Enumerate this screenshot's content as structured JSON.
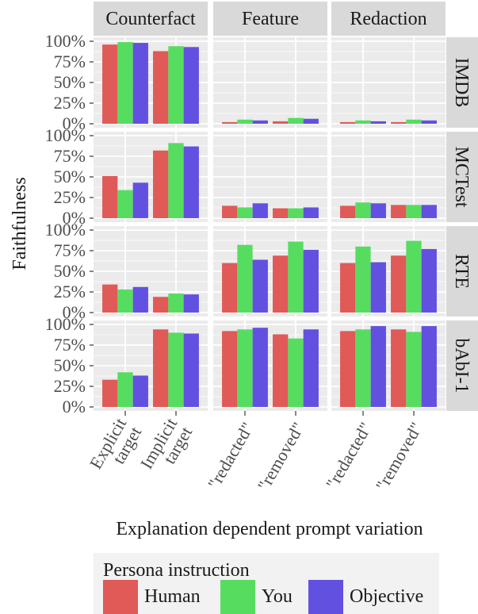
{
  "chart_data": {
    "type": "bar",
    "facet_columns": [
      "Counterfact",
      "Feature",
      "Redaction"
    ],
    "facet_rows": [
      "IMDB",
      "MCTest",
      "RTE",
      "bAbI-1"
    ],
    "xlabel": "Explanation dependent prompt variation",
    "ylabel": "Faithfulness",
    "ylim": [
      0,
      1
    ],
    "y_ticks": [
      "0%",
      "25%",
      "50%",
      "75%",
      "100%"
    ],
    "grid": true,
    "legend": {
      "title": "Persona instruction",
      "position": "bottom",
      "entries": [
        "Human",
        "You",
        "Objective"
      ]
    },
    "colors": {
      "Human": "#e05a57",
      "You": "#56dd60",
      "Objective": "#6251e1",
      "panel_bg": "#ebebeb",
      "strip_bg": "#d9d9d9",
      "grid": "#ffffff"
    },
    "category_labels": {
      "Counterfact": [
        [
          "Explicit",
          "target"
        ],
        [
          "Implicit",
          "target"
        ]
      ],
      "Feature": [
        [
          "\"redacted\""
        ],
        [
          "\"removed\""
        ]
      ],
      "Redaction": [
        [
          "\"redacted\""
        ],
        [
          "\"removed\""
        ]
      ]
    },
    "panels": {
      "IMDB": {
        "Counterfact": [
          [
            0.96,
            0.99,
            0.98
          ],
          [
            0.88,
            0.94,
            0.93
          ]
        ],
        "Feature": [
          [
            0.02,
            0.05,
            0.04
          ],
          [
            0.03,
            0.07,
            0.06
          ]
        ],
        "Redaction": [
          [
            0.02,
            0.04,
            0.03
          ],
          [
            0.02,
            0.05,
            0.04
          ]
        ]
      },
      "MCTest": {
        "Counterfact": [
          [
            0.51,
            0.34,
            0.43
          ],
          [
            0.82,
            0.91,
            0.87
          ]
        ],
        "Feature": [
          [
            0.15,
            0.13,
            0.18
          ],
          [
            0.12,
            0.12,
            0.13
          ]
        ],
        "Redaction": [
          [
            0.15,
            0.19,
            0.18
          ],
          [
            0.16,
            0.16,
            0.16
          ]
        ]
      },
      "RTE": {
        "Counterfact": [
          [
            0.34,
            0.28,
            0.31
          ],
          [
            0.19,
            0.23,
            0.22
          ]
        ],
        "Feature": [
          [
            0.6,
            0.82,
            0.64
          ],
          [
            0.69,
            0.86,
            0.76
          ]
        ],
        "Redaction": [
          [
            0.6,
            0.8,
            0.61
          ],
          [
            0.69,
            0.87,
            0.77
          ]
        ]
      },
      "bAbI-1": {
        "Counterfact": [
          [
            0.33,
            0.42,
            0.38
          ],
          [
            0.94,
            0.9,
            0.89
          ]
        ],
        "Feature": [
          [
            0.92,
            0.94,
            0.96
          ],
          [
            0.88,
            0.83,
            0.94
          ]
        ],
        "Redaction": [
          [
            0.92,
            0.94,
            0.98
          ],
          [
            0.94,
            0.91,
            0.98
          ]
        ]
      }
    }
  }
}
